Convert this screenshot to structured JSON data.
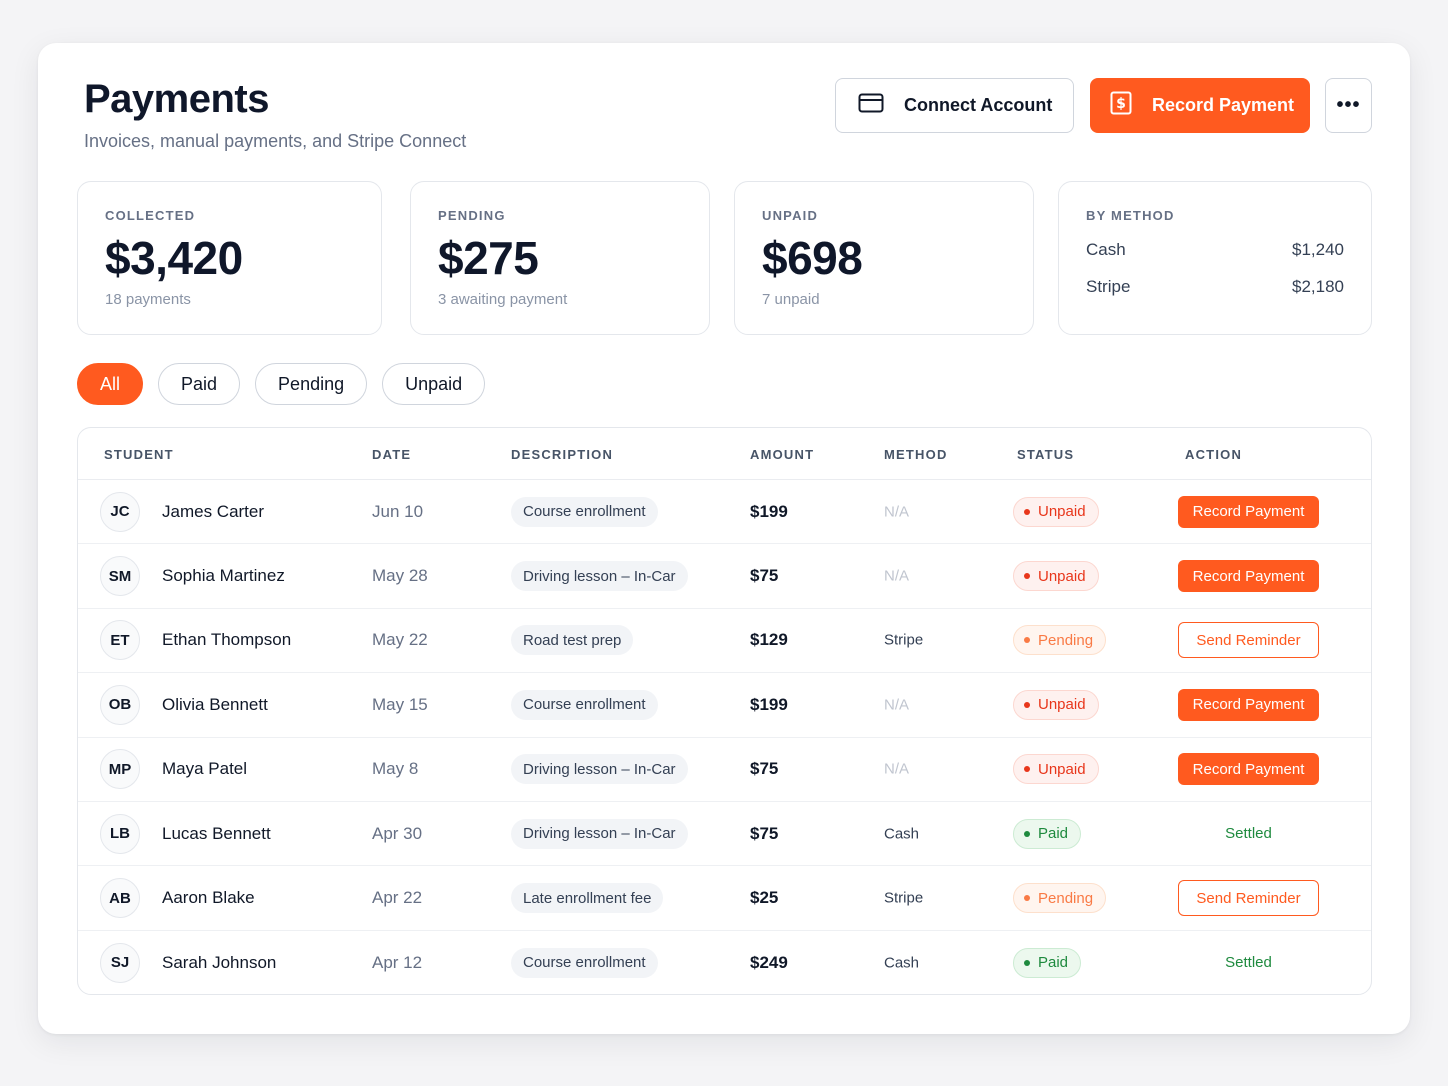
{
  "header": {
    "title": "Payments",
    "subtitle": "Invoices, manual payments, and Stripe Connect",
    "connect_label": "Connect Account",
    "record_label": "Record Payment",
    "more_label": "•••"
  },
  "stats": {
    "collected": {
      "label": "COLLECTED",
      "value": "$3,420",
      "sub": "18 payments"
    },
    "pending": {
      "label": "PENDING",
      "value": "$275",
      "sub": "3 awaiting payment"
    },
    "unpaid": {
      "label": "UNPAID",
      "value": "$698",
      "sub": "7 unpaid"
    },
    "by_method": {
      "label": "BY METHOD",
      "rows": [
        {
          "name": "Cash",
          "amount": "$1,240"
        },
        {
          "name": "Stripe",
          "amount": "$2,180"
        }
      ]
    }
  },
  "filters": [
    "All",
    "Paid",
    "Pending",
    "Unpaid"
  ],
  "table": {
    "columns": [
      "STUDENT",
      "DATE",
      "DESCRIPTION",
      "AMOUNT",
      "METHOD",
      "STATUS",
      "ACTION"
    ],
    "rows": [
      {
        "initials": "JC",
        "name": "James Carter",
        "date": "Jun 10",
        "description": "Course enrollment",
        "amount": "$199",
        "method": "N/A",
        "status": "Unpaid",
        "action": "Record Payment"
      },
      {
        "initials": "SM",
        "name": "Sophia Martinez",
        "date": "May 28",
        "description": "Driving lesson – In-Car",
        "amount": "$75",
        "method": "N/A",
        "status": "Unpaid",
        "action": "Record Payment"
      },
      {
        "initials": "ET",
        "name": "Ethan Thompson",
        "date": "May 22",
        "description": "Road test prep",
        "amount": "$129",
        "method": "Stripe",
        "status": "Pending",
        "action": "Send Reminder"
      },
      {
        "initials": "OB",
        "name": "Olivia Bennett",
        "date": "May 15",
        "description": "Course enrollment",
        "amount": "$199",
        "method": "N/A",
        "status": "Unpaid",
        "action": "Record Payment"
      },
      {
        "initials": "MP",
        "name": "Maya Patel",
        "date": "May 8",
        "description": "Driving lesson – In-Car",
        "amount": "$75",
        "method": "N/A",
        "status": "Unpaid",
        "action": "Record Payment"
      },
      {
        "initials": "LB",
        "name": "Lucas Bennett",
        "date": "Apr 30",
        "description": "Driving lesson – In-Car",
        "amount": "$75",
        "method": "Cash",
        "status": "Paid",
        "action": "Settled"
      },
      {
        "initials": "AB",
        "name": "Aaron Blake",
        "date": "Apr 22",
        "description": "Late enrollment fee",
        "amount": "$25",
        "method": "Stripe",
        "status": "Pending",
        "action": "Send Reminder"
      },
      {
        "initials": "SJ",
        "name": "Sarah Johnson",
        "date": "Apr 12",
        "description": "Course enrollment",
        "amount": "$249",
        "method": "Cash",
        "status": "Paid",
        "action": "Settled"
      }
    ]
  },
  "icons": {
    "connect": "credit-card-icon",
    "record": "dollar-bill-icon",
    "more": "more-dots-icon"
  },
  "colors": {
    "accent": "#ff5a1f",
    "unpaid": "#e8361b",
    "pending": "#f97a45",
    "paid": "#1e8a3e"
  }
}
